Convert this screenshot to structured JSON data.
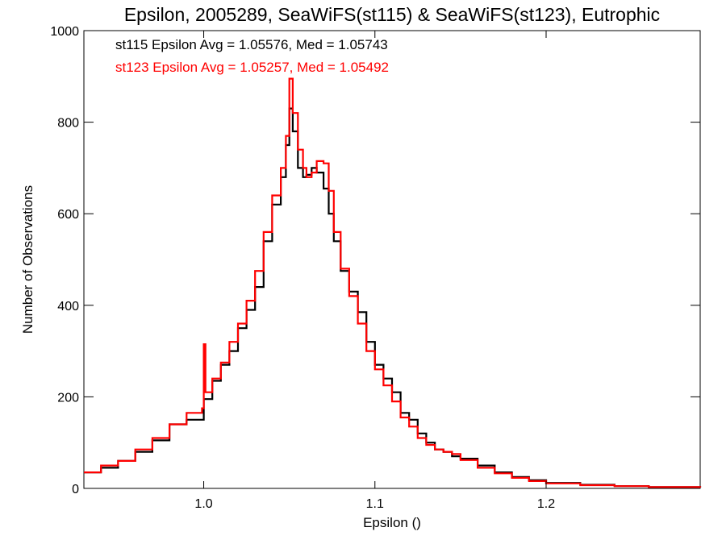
{
  "chart_data": {
    "type": "line",
    "title": "Epsilon, 2005289, SeaWiFS(st115) & SeaWiFS(st123), Eutrophic",
    "xlabel": "Epsilon ()",
    "ylabel": "Number of Observations",
    "xlim": [
      0.93,
      1.29
    ],
    "ylim": [
      0,
      1000
    ],
    "x_ticks": [
      1.0,
      1.1,
      1.2
    ],
    "x_tick_labels": [
      "1.0",
      "1.1",
      "1.2"
    ],
    "y_ticks": [
      0,
      200,
      400,
      600,
      800,
      1000
    ],
    "y_tick_labels": [
      "0",
      "200",
      "400",
      "600",
      "800",
      "1000"
    ],
    "grid": false,
    "step": true,
    "legend_placement": "top-left",
    "annotations": [
      {
        "text": "st115 Epsilon Avg = 1.05576, Med = 1.05743",
        "color": "#000000"
      },
      {
        "text": "st123 Epsilon Avg = 1.05257, Med = 1.05492",
        "color": "#ff0000"
      }
    ],
    "series": [
      {
        "color": "#000000",
        "x": [
          0.93,
          0.94,
          0.95,
          0.96,
          0.97,
          0.98,
          0.99,
          1.0,
          1.005,
          1.01,
          1.015,
          1.02,
          1.025,
          1.03,
          1.035,
          1.04,
          1.045,
          1.048,
          1.05,
          1.052,
          1.055,
          1.058,
          1.06,
          1.063,
          1.066,
          1.07,
          1.073,
          1.076,
          1.08,
          1.085,
          1.09,
          1.095,
          1.1,
          1.105,
          1.11,
          1.115,
          1.12,
          1.125,
          1.13,
          1.135,
          1.14,
          1.145,
          1.15,
          1.16,
          1.17,
          1.18,
          1.19,
          1.2,
          1.22,
          1.24,
          1.26,
          1.29
        ],
        "y": [
          35,
          45,
          60,
          80,
          105,
          140,
          150,
          195,
          235,
          270,
          300,
          350,
          390,
          440,
          540,
          620,
          680,
          750,
          830,
          780,
          700,
          680,
          685,
          700,
          690,
          655,
          600,
          540,
          475,
          430,
          385,
          320,
          270,
          240,
          210,
          165,
          150,
          120,
          100,
          85,
          80,
          70,
          65,
          50,
          35,
          25,
          18,
          12,
          8,
          5,
          3,
          2
        ]
      },
      {
        "color": "#ff0000",
        "x": [
          0.93,
          0.94,
          0.95,
          0.96,
          0.97,
          0.98,
          0.99,
          0.999,
          1.0,
          1.001,
          1.005,
          1.01,
          1.015,
          1.02,
          1.025,
          1.03,
          1.035,
          1.04,
          1.045,
          1.048,
          1.05,
          1.052,
          1.055,
          1.058,
          1.06,
          1.063,
          1.066,
          1.07,
          1.073,
          1.076,
          1.08,
          1.085,
          1.09,
          1.095,
          1.1,
          1.105,
          1.11,
          1.115,
          1.12,
          1.125,
          1.13,
          1.135,
          1.14,
          1.145,
          1.15,
          1.16,
          1.17,
          1.18,
          1.19,
          1.2,
          1.22,
          1.24,
          1.26,
          1.29
        ],
        "y": [
          35,
          50,
          60,
          85,
          110,
          140,
          165,
          175,
          315,
          210,
          240,
          275,
          320,
          360,
          410,
          475,
          560,
          640,
          700,
          770,
          895,
          820,
          740,
          700,
          680,
          690,
          715,
          710,
          650,
          560,
          480,
          420,
          360,
          300,
          260,
          225,
          190,
          155,
          135,
          110,
          95,
          85,
          80,
          75,
          62,
          45,
          33,
          23,
          16,
          11,
          7,
          5,
          3,
          2
        ]
      }
    ]
  }
}
